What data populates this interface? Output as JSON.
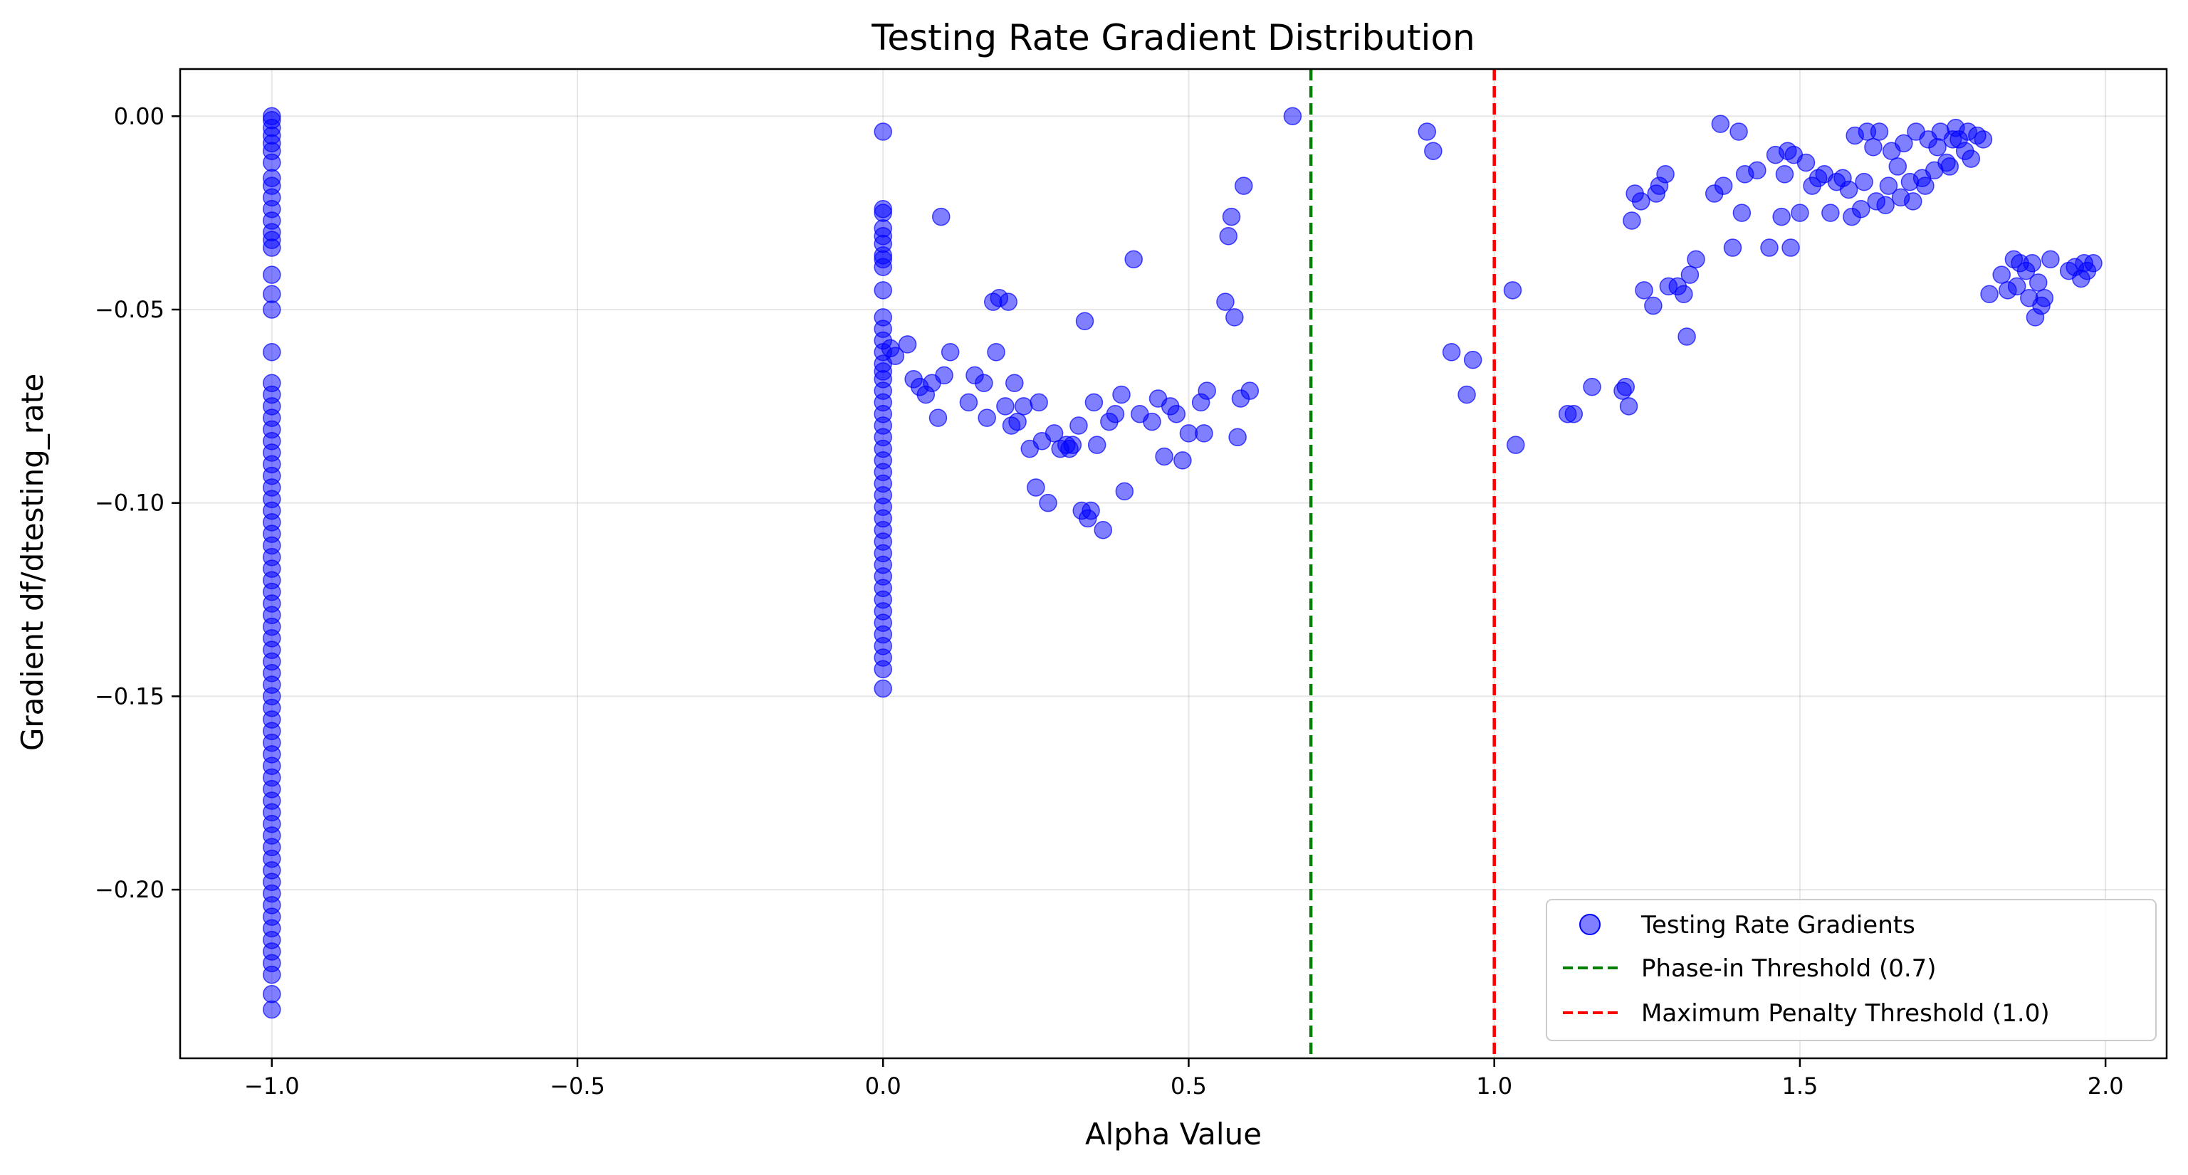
{
  "chart_data": {
    "type": "scatter",
    "title": "Testing Rate Gradient Distribution",
    "xlabel": "Alpha Value",
    "ylabel": "Gradient df/dtesting_rate",
    "xlim": [
      -1.15,
      2.1
    ],
    "ylim": [
      -0.2436,
      0.0122
    ],
    "xticks": [
      -1.0,
      -0.5,
      0.0,
      0.5,
      1.0,
      1.5,
      2.0
    ],
    "xtick_labels": [
      "−1.0",
      "−0.5",
      "0.0",
      "0.5",
      "1.0",
      "1.5",
      "2.0"
    ],
    "yticks": [
      0.0,
      -0.05,
      -0.1,
      -0.15,
      -0.2
    ],
    "ytick_labels": [
      "0.00",
      "−0.05",
      "−0.10",
      "−0.15",
      "−0.20"
    ],
    "grid": true,
    "legend_position": "lower-right",
    "series": [
      {
        "name": "Testing Rate Gradients",
        "kind": "scatter",
        "color": "#0000ff",
        "points": [
          [
            -1.0,
            0.0
          ],
          [
            -1.0,
            -0.001
          ],
          [
            -1.0,
            -0.003
          ],
          [
            -1.0,
            -0.005
          ],
          [
            -1.0,
            -0.007
          ],
          [
            -1.0,
            -0.009
          ],
          [
            -1.0,
            -0.012
          ],
          [
            -1.0,
            -0.016
          ],
          [
            -1.0,
            -0.018
          ],
          [
            -1.0,
            -0.021
          ],
          [
            -1.0,
            -0.024
          ],
          [
            -1.0,
            -0.027
          ],
          [
            -1.0,
            -0.03
          ],
          [
            -1.0,
            -0.032
          ],
          [
            -1.0,
            -0.034
          ],
          [
            -1.0,
            -0.041
          ],
          [
            -1.0,
            -0.046
          ],
          [
            -1.0,
            -0.05
          ],
          [
            -1.0,
            -0.061
          ],
          [
            -1.0,
            -0.069
          ],
          [
            -1.0,
            -0.072
          ],
          [
            -1.0,
            -0.075
          ],
          [
            -1.0,
            -0.078
          ],
          [
            -1.0,
            -0.081
          ],
          [
            -1.0,
            -0.084
          ],
          [
            -1.0,
            -0.087
          ],
          [
            -1.0,
            -0.09
          ],
          [
            -1.0,
            -0.093
          ],
          [
            -1.0,
            -0.096
          ],
          [
            -1.0,
            -0.099
          ],
          [
            -1.0,
            -0.102
          ],
          [
            -1.0,
            -0.105
          ],
          [
            -1.0,
            -0.108
          ],
          [
            -1.0,
            -0.111
          ],
          [
            -1.0,
            -0.114
          ],
          [
            -1.0,
            -0.117
          ],
          [
            -1.0,
            -0.12
          ],
          [
            -1.0,
            -0.123
          ],
          [
            -1.0,
            -0.126
          ],
          [
            -1.0,
            -0.129
          ],
          [
            -1.0,
            -0.132
          ],
          [
            -1.0,
            -0.135
          ],
          [
            -1.0,
            -0.138
          ],
          [
            -1.0,
            -0.141
          ],
          [
            -1.0,
            -0.144
          ],
          [
            -1.0,
            -0.147
          ],
          [
            -1.0,
            -0.15
          ],
          [
            -1.0,
            -0.153
          ],
          [
            -1.0,
            -0.156
          ],
          [
            -1.0,
            -0.159
          ],
          [
            -1.0,
            -0.162
          ],
          [
            -1.0,
            -0.165
          ],
          [
            -1.0,
            -0.168
          ],
          [
            -1.0,
            -0.171
          ],
          [
            -1.0,
            -0.174
          ],
          [
            -1.0,
            -0.177
          ],
          [
            -1.0,
            -0.18
          ],
          [
            -1.0,
            -0.183
          ],
          [
            -1.0,
            -0.186
          ],
          [
            -1.0,
            -0.189
          ],
          [
            -1.0,
            -0.192
          ],
          [
            -1.0,
            -0.195
          ],
          [
            -1.0,
            -0.198
          ],
          [
            -1.0,
            -0.201
          ],
          [
            -1.0,
            -0.204
          ],
          [
            -1.0,
            -0.207
          ],
          [
            -1.0,
            -0.21
          ],
          [
            -1.0,
            -0.213
          ],
          [
            -1.0,
            -0.216
          ],
          [
            -1.0,
            -0.219
          ],
          [
            -1.0,
            -0.222
          ],
          [
            -1.0,
            -0.227
          ],
          [
            -1.0,
            -0.231
          ],
          [
            0.0,
            -0.004
          ],
          [
            0.0,
            -0.024
          ],
          [
            0.0,
            -0.025
          ],
          [
            0.0,
            -0.029
          ],
          [
            0.0,
            -0.031
          ],
          [
            0.0,
            -0.033
          ],
          [
            0.0,
            -0.036
          ],
          [
            0.0,
            -0.037
          ],
          [
            0.0,
            -0.039
          ],
          [
            0.0,
            -0.045
          ],
          [
            0.0,
            -0.052
          ],
          [
            0.0,
            -0.055
          ],
          [
            0.0,
            -0.058
          ],
          [
            0.0,
            -0.061
          ],
          [
            0.0,
            -0.064
          ],
          [
            0.0,
            -0.066
          ],
          [
            0.0,
            -0.068
          ],
          [
            0.0,
            -0.071
          ],
          [
            0.0,
            -0.074
          ],
          [
            0.0,
            -0.077
          ],
          [
            0.0,
            -0.08
          ],
          [
            0.0,
            -0.083
          ],
          [
            0.0,
            -0.086
          ],
          [
            0.0,
            -0.089
          ],
          [
            0.0,
            -0.092
          ],
          [
            0.0,
            -0.095
          ],
          [
            0.0,
            -0.098
          ],
          [
            0.0,
            -0.101
          ],
          [
            0.0,
            -0.104
          ],
          [
            0.0,
            -0.107
          ],
          [
            0.0,
            -0.11
          ],
          [
            0.0,
            -0.113
          ],
          [
            0.0,
            -0.116
          ],
          [
            0.0,
            -0.119
          ],
          [
            0.0,
            -0.122
          ],
          [
            0.0,
            -0.125
          ],
          [
            0.0,
            -0.128
          ],
          [
            0.0,
            -0.131
          ],
          [
            0.0,
            -0.134
          ],
          [
            0.0,
            -0.137
          ],
          [
            0.0,
            -0.14
          ],
          [
            0.0,
            -0.143
          ],
          [
            0.0,
            -0.148
          ],
          [
            0.012,
            -0.06
          ],
          [
            0.02,
            -0.062
          ],
          [
            0.04,
            -0.059
          ],
          [
            0.05,
            -0.068
          ],
          [
            0.06,
            -0.07
          ],
          [
            0.07,
            -0.072
          ],
          [
            0.08,
            -0.069
          ],
          [
            0.09,
            -0.078
          ],
          [
            0.095,
            -0.026
          ],
          [
            0.1,
            -0.067
          ],
          [
            0.11,
            -0.061
          ],
          [
            0.14,
            -0.074
          ],
          [
            0.15,
            -0.067
          ],
          [
            0.165,
            -0.069
          ],
          [
            0.17,
            -0.078
          ],
          [
            0.18,
            -0.048
          ],
          [
            0.185,
            -0.061
          ],
          [
            0.19,
            -0.047
          ],
          [
            0.2,
            -0.075
          ],
          [
            0.205,
            -0.048
          ],
          [
            0.21,
            -0.08
          ],
          [
            0.215,
            -0.069
          ],
          [
            0.22,
            -0.079
          ],
          [
            0.23,
            -0.075
          ],
          [
            0.24,
            -0.086
          ],
          [
            0.25,
            -0.096
          ],
          [
            0.255,
            -0.074
          ],
          [
            0.26,
            -0.084
          ],
          [
            0.27,
            -0.1
          ],
          [
            0.28,
            -0.082
          ],
          [
            0.29,
            -0.086
          ],
          [
            0.3,
            -0.085
          ],
          [
            0.305,
            -0.086
          ],
          [
            0.31,
            -0.085
          ],
          [
            0.32,
            -0.08
          ],
          [
            0.325,
            -0.102
          ],
          [
            0.33,
            -0.053
          ],
          [
            0.335,
            -0.104
          ],
          [
            0.34,
            -0.102
          ],
          [
            0.345,
            -0.074
          ],
          [
            0.35,
            -0.085
          ],
          [
            0.36,
            -0.107
          ],
          [
            0.37,
            -0.079
          ],
          [
            0.38,
            -0.077
          ],
          [
            0.39,
            -0.072
          ],
          [
            0.395,
            -0.097
          ],
          [
            0.41,
            -0.037
          ],
          [
            0.42,
            -0.077
          ],
          [
            0.44,
            -0.079
          ],
          [
            0.45,
            -0.073
          ],
          [
            0.46,
            -0.088
          ],
          [
            0.47,
            -0.075
          ],
          [
            0.48,
            -0.077
          ],
          [
            0.49,
            -0.089
          ],
          [
            0.5,
            -0.082
          ],
          [
            0.52,
            -0.074
          ],
          [
            0.525,
            -0.082
          ],
          [
            0.53,
            -0.071
          ],
          [
            0.56,
            -0.048
          ],
          [
            0.565,
            -0.031
          ],
          [
            0.57,
            -0.026
          ],
          [
            0.575,
            -0.052
          ],
          [
            0.58,
            -0.083
          ],
          [
            0.585,
            -0.073
          ],
          [
            0.59,
            -0.018
          ],
          [
            0.6,
            -0.071
          ],
          [
            0.67,
            0.0
          ],
          [
            0.89,
            -0.004
          ],
          [
            0.9,
            -0.009
          ],
          [
            0.93,
            -0.061
          ],
          [
            0.955,
            -0.072
          ],
          [
            0.965,
            -0.063
          ],
          [
            1.03,
            -0.045
          ],
          [
            1.035,
            -0.085
          ],
          [
            1.12,
            -0.077
          ],
          [
            1.13,
            -0.077
          ],
          [
            1.16,
            -0.07
          ],
          [
            1.21,
            -0.071
          ],
          [
            1.215,
            -0.07
          ],
          [
            1.22,
            -0.075
          ],
          [
            1.225,
            -0.027
          ],
          [
            1.23,
            -0.02
          ],
          [
            1.24,
            -0.022
          ],
          [
            1.245,
            -0.045
          ],
          [
            1.26,
            -0.049
          ],
          [
            1.265,
            -0.02
          ],
          [
            1.27,
            -0.018
          ],
          [
            1.28,
            -0.015
          ],
          [
            1.285,
            -0.044
          ],
          [
            1.3,
            -0.044
          ],
          [
            1.31,
            -0.046
          ],
          [
            1.315,
            -0.057
          ],
          [
            1.32,
            -0.041
          ],
          [
            1.33,
            -0.037
          ],
          [
            1.36,
            -0.02
          ],
          [
            1.37,
            -0.002
          ],
          [
            1.375,
            -0.018
          ],
          [
            1.39,
            -0.034
          ],
          [
            1.4,
            -0.004
          ],
          [
            1.405,
            -0.025
          ],
          [
            1.41,
            -0.015
          ],
          [
            1.43,
            -0.014
          ],
          [
            1.45,
            -0.034
          ],
          [
            1.46,
            -0.01
          ],
          [
            1.47,
            -0.026
          ],
          [
            1.475,
            -0.015
          ],
          [
            1.48,
            -0.009
          ],
          [
            1.485,
            -0.034
          ],
          [
            1.49,
            -0.01
          ],
          [
            1.5,
            -0.025
          ],
          [
            1.51,
            -0.012
          ],
          [
            1.52,
            -0.018
          ],
          [
            1.53,
            -0.016
          ],
          [
            1.54,
            -0.015
          ],
          [
            1.55,
            -0.025
          ],
          [
            1.56,
            -0.017
          ],
          [
            1.57,
            -0.016
          ],
          [
            1.58,
            -0.019
          ],
          [
            1.585,
            -0.026
          ],
          [
            1.59,
            -0.005
          ],
          [
            1.6,
            -0.024
          ],
          [
            1.605,
            -0.017
          ],
          [
            1.61,
            -0.004
          ],
          [
            1.62,
            -0.008
          ],
          [
            1.625,
            -0.022
          ],
          [
            1.63,
            -0.004
          ],
          [
            1.64,
            -0.023
          ],
          [
            1.645,
            -0.018
          ],
          [
            1.65,
            -0.009
          ],
          [
            1.66,
            -0.013
          ],
          [
            1.665,
            -0.021
          ],
          [
            1.67,
            -0.007
          ],
          [
            1.68,
            -0.017
          ],
          [
            1.685,
            -0.022
          ],
          [
            1.69,
            -0.004
          ],
          [
            1.7,
            -0.016
          ],
          [
            1.705,
            -0.018
          ],
          [
            1.71,
            -0.006
          ],
          [
            1.72,
            -0.014
          ],
          [
            1.725,
            -0.008
          ],
          [
            1.73,
            -0.004
          ],
          [
            1.74,
            -0.012
          ],
          [
            1.745,
            -0.013
          ],
          [
            1.75,
            -0.006
          ],
          [
            1.755,
            -0.003
          ],
          [
            1.76,
            -0.006
          ],
          [
            1.77,
            -0.009
          ],
          [
            1.775,
            -0.004
          ],
          [
            1.78,
            -0.011
          ],
          [
            1.79,
            -0.005
          ],
          [
            1.8,
            -0.006
          ],
          [
            1.81,
            -0.046
          ],
          [
            1.83,
            -0.041
          ],
          [
            1.84,
            -0.045
          ],
          [
            1.85,
            -0.037
          ],
          [
            1.855,
            -0.044
          ],
          [
            1.86,
            -0.038
          ],
          [
            1.87,
            -0.04
          ],
          [
            1.875,
            -0.047
          ],
          [
            1.88,
            -0.038
          ],
          [
            1.885,
            -0.052
          ],
          [
            1.89,
            -0.043
          ],
          [
            1.895,
            -0.049
          ],
          [
            1.9,
            -0.047
          ],
          [
            1.91,
            -0.037
          ],
          [
            1.94,
            -0.04
          ],
          [
            1.95,
            -0.039
          ],
          [
            1.96,
            -0.042
          ],
          [
            1.965,
            -0.038
          ],
          [
            1.97,
            -0.04
          ],
          [
            1.98,
            -0.038
          ]
        ]
      },
      {
        "name": "Phase-in Threshold (0.7)",
        "kind": "vline",
        "x": 0.7,
        "color": "#008000",
        "style": "dashed"
      },
      {
        "name": "Maximum Penalty Threshold (1.0)",
        "kind": "vline",
        "x": 1.0,
        "color": "#ff0000",
        "style": "dashed"
      }
    ]
  }
}
